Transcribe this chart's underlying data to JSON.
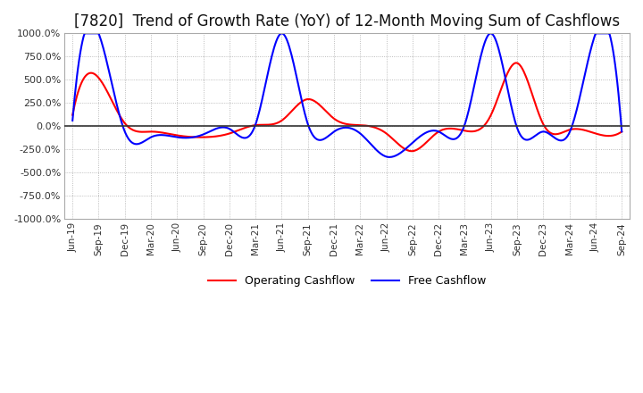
{
  "title": "[7820]  Trend of Growth Rate (YoY) of 12-Month Moving Sum of Cashflows",
  "title_fontsize": 12,
  "ylim": [
    -1000,
    1000
  ],
  "yticks": [
    -1000,
    -750,
    -500,
    -250,
    0,
    250,
    500,
    750,
    1000
  ],
  "ytick_labels": [
    "-1000.0%",
    "-750.0%",
    "-500.0%",
    "-250.0%",
    "0.0%",
    "250.0%",
    "500.0%",
    "750.0%",
    "1000.0%"
  ],
  "background_color": "#ffffff",
  "plot_bg_color": "#ffffff",
  "grid_color": "#aaaaaa",
  "legend_labels": [
    "Operating Cashflow",
    "Free Cashflow"
  ],
  "legend_colors": [
    "#ff0000",
    "#0000ff"
  ],
  "x_labels": [
    "Jun-19",
    "Sep-19",
    "Dec-19",
    "Mar-20",
    "Jun-20",
    "Sep-20",
    "Dec-20",
    "Mar-21",
    "Jun-21",
    "Sep-21",
    "Dec-21",
    "Mar-22",
    "Jun-22",
    "Sep-22",
    "Dec-22",
    "Mar-23",
    "Jun-23",
    "Sep-23",
    "Dec-23",
    "Mar-24",
    "Jun-24",
    "Sep-24"
  ],
  "operating_cashflow": [
    120,
    520,
    30,
    -60,
    -100,
    -120,
    -80,
    10,
    60,
    290,
    80,
    10,
    -80,
    -270,
    -60,
    -50,
    120,
    680,
    20,
    -40,
    -80,
    -60
  ],
  "free_cashflow": [
    60,
    1000,
    -60,
    -120,
    -120,
    -90,
    -30,
    20,
    1000,
    20,
    -60,
    -80,
    -330,
    -180,
    -60,
    20,
    1000,
    -20,
    -60,
    -70,
    1000,
    -60
  ]
}
